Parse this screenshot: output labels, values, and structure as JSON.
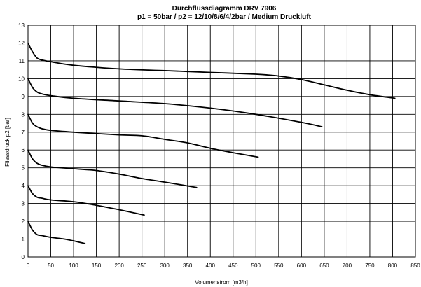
{
  "chart_data": {
    "type": "line",
    "title": "Durchflussdiagramm DRV 7906",
    "subtitle": "p1 = 50bar / p2 = 12/10/8/6/4/2bar / Medium Druckluft",
    "xlabel": "Volumenstrom [m3/h]",
    "ylabel": "Fliessdruck p2 [bar]",
    "xlim": [
      0,
      850
    ],
    "ylim": [
      0,
      13
    ],
    "grid": true,
    "xticks": [
      "0",
      "50",
      "100",
      "150",
      "200",
      "250",
      "300",
      "350",
      "400",
      "450",
      "500",
      "550",
      "600",
      "650",
      "700",
      "750",
      "800",
      "850"
    ],
    "yticks": [
      "0",
      "1",
      "2",
      "3",
      "4",
      "5",
      "6",
      "7",
      "8",
      "9",
      "10",
      "11",
      "12",
      "13"
    ],
    "series": [
      {
        "x": [
          0,
          10,
          20,
          30,
          50,
          100,
          200,
          300,
          400,
          500,
          550,
          600,
          650,
          700,
          750,
          805
        ],
        "y": [
          12.0,
          11.5,
          11.15,
          11.05,
          10.95,
          10.75,
          10.55,
          10.45,
          10.35,
          10.25,
          10.15,
          9.95,
          9.65,
          9.35,
          9.1,
          8.9
        ]
      },
      {
        "x": [
          0,
          10,
          20,
          30,
          50,
          100,
          200,
          300,
          400,
          500,
          600,
          645
        ],
        "y": [
          10.0,
          9.5,
          9.25,
          9.15,
          9.05,
          8.9,
          8.75,
          8.6,
          8.35,
          8.0,
          7.55,
          7.3
        ]
      },
      {
        "x": [
          0,
          10,
          20,
          30,
          50,
          100,
          200,
          250,
          300,
          350,
          400,
          450,
          505
        ],
        "y": [
          8.0,
          7.5,
          7.3,
          7.2,
          7.1,
          7.0,
          6.85,
          6.8,
          6.6,
          6.4,
          6.1,
          5.85,
          5.6
        ]
      },
      {
        "x": [
          0,
          10,
          20,
          30,
          50,
          100,
          150,
          200,
          250,
          300,
          370
        ],
        "y": [
          6.0,
          5.5,
          5.25,
          5.15,
          5.05,
          4.95,
          4.85,
          4.65,
          4.4,
          4.2,
          3.9
        ]
      },
      {
        "x": [
          0,
          10,
          20,
          30,
          50,
          100,
          150,
          200,
          255
        ],
        "y": [
          4.0,
          3.55,
          3.35,
          3.3,
          3.2,
          3.1,
          2.9,
          2.65,
          2.35
        ]
      },
      {
        "x": [
          0,
          10,
          20,
          30,
          50,
          80,
          100,
          125
        ],
        "y": [
          2.0,
          1.5,
          1.25,
          1.2,
          1.1,
          1.0,
          0.9,
          0.75
        ]
      }
    ]
  }
}
